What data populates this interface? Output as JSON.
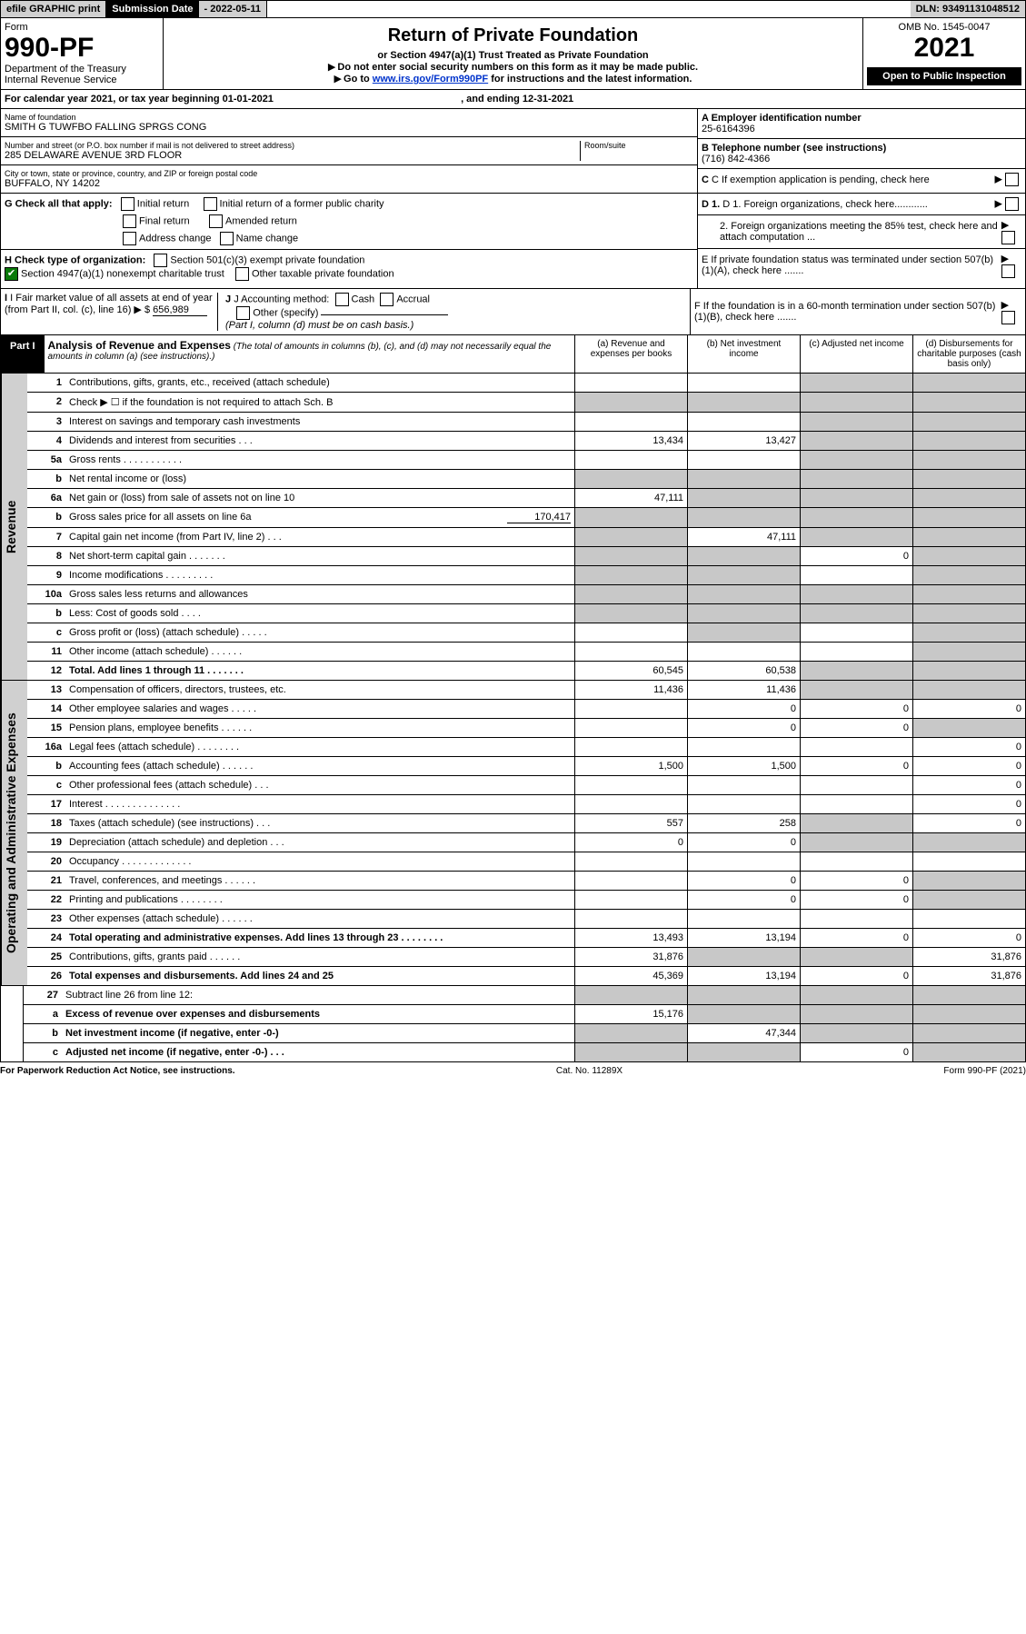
{
  "top": {
    "efile": "efile GRAPHIC print",
    "subm_label": "Submission Date",
    "subm_date": "2022-05-11",
    "dln_label": "DLN:",
    "dln": "93491131048512"
  },
  "header": {
    "form_word": "Form",
    "form_num": "990-PF",
    "dept": "Department of the Treasury",
    "irs": "Internal Revenue Service",
    "title": "Return of Private Foundation",
    "subtitle": "or Section 4947(a)(1) Trust Treated as Private Foundation",
    "note1": "Do not enter social security numbers on this form as it may be made public.",
    "note2_pre": "Go to ",
    "note2_link": "www.irs.gov/Form990PF",
    "note2_post": " for instructions and the latest information.",
    "omb": "OMB No. 1545-0047",
    "year": "2021",
    "open_pub": "Open to Public Inspection"
  },
  "cal_year": {
    "pre": "For calendar year 2021, or tax year beginning ",
    "begin": "01-01-2021",
    "mid": ", and ending ",
    "end": "12-31-2021"
  },
  "entity": {
    "name_label": "Name of foundation",
    "name": "SMITH G TUWFBO FALLING SPRGS CONG",
    "addr_label": "Number and street (or P.O. box number if mail is not delivered to street address)",
    "addr": "285 DELAWARE AVENUE 3RD FLOOR",
    "room_label": "Room/suite",
    "city_label": "City or town, state or province, country, and ZIP or foreign postal code",
    "city": "BUFFALO, NY  14202",
    "A_label": "A Employer identification number",
    "A_val": "25-6164396",
    "B_label": "B Telephone number (see instructions)",
    "B_val": "(716) 842-4366",
    "C_label": "C If exemption application is pending, check here"
  },
  "G": {
    "label": "G Check all that apply:",
    "initial": "Initial return",
    "initial_former": "Initial return of a former public charity",
    "final": "Final return",
    "amended": "Amended return",
    "addr_change": "Address change",
    "name_change": "Name change"
  },
  "H": {
    "label": "H Check type of organization:",
    "c3": "Section 501(c)(3) exempt private foundation",
    "trust": "Section 4947(a)(1) nonexempt charitable trust",
    "other_tax": "Other taxable private foundation"
  },
  "I": {
    "label": "I Fair market value of all assets at end of year (from Part II, col. (c), line 16)",
    "val": "656,989"
  },
  "J": {
    "label": "J Accounting method:",
    "cash": "Cash",
    "accrual": "Accrual",
    "other": "Other (specify)",
    "note": "(Part I, column (d) must be on cash basis.)"
  },
  "right_mid": {
    "D1": "D 1. Foreign organizations, check here............",
    "D2": "2. Foreign organizations meeting the 85% test, check here and attach computation ...",
    "E": "E  If private foundation status was terminated under section 507(b)(1)(A), check here .......",
    "F": "F  If the foundation is in a 60-month termination under section 507(b)(1)(B), check here ......."
  },
  "part1": {
    "tag": "Part I",
    "title": "Analysis of Revenue and Expenses",
    "note": "(The total of amounts in columns (b), (c), and (d) may not necessarily equal the amounts in column (a) (see instructions).)",
    "col_a": "(a)  Revenue and expenses per books",
    "col_b": "(b)  Net investment income",
    "col_c": "(c)  Adjusted net income",
    "col_d": "(d)  Disbursements for charitable purposes (cash basis only)"
  },
  "side": {
    "rev": "Revenue",
    "exp": "Operating and Administrative Expenses"
  },
  "rows": {
    "r1": {
      "n": "1",
      "d": "Contributions, gifts, grants, etc., received (attach schedule)"
    },
    "r2": {
      "n": "2",
      "d": "Check ▶ ☐ if the foundation is not required to attach Sch. B"
    },
    "r3": {
      "n": "3",
      "d": "Interest on savings and temporary cash investments"
    },
    "r4": {
      "n": "4",
      "d": "Dividends and interest from securities  .  .  .",
      "a": "13,434",
      "b": "13,427"
    },
    "r5a": {
      "n": "5a",
      "d": "Gross rents  .  .  .  .  .  .  .  .  .  .  ."
    },
    "r5b": {
      "n": "b",
      "d": "Net rental income or (loss)"
    },
    "r6a": {
      "n": "6a",
      "d": "Net gain or (loss) from sale of assets not on line 10",
      "a": "47,111"
    },
    "r6b": {
      "n": "b",
      "d": "Gross sales price for all assets on line 6a",
      "extra": "170,417"
    },
    "r7": {
      "n": "7",
      "d": "Capital gain net income (from Part IV, line 2)  .  .  .",
      "b": "47,111"
    },
    "r8": {
      "n": "8",
      "d": "Net short-term capital gain  .  .  .  .  .  .  .",
      "c": "0"
    },
    "r9": {
      "n": "9",
      "d": "Income modifications  .  .  .  .  .  .  .  .  ."
    },
    "r10a": {
      "n": "10a",
      "d": "Gross sales less returns and allowances"
    },
    "r10b": {
      "n": "b",
      "d": "Less: Cost of goods sold  .  .  .  ."
    },
    "r10c": {
      "n": "c",
      "d": "Gross profit or (loss) (attach schedule)  .  .  .  .  ."
    },
    "r11": {
      "n": "11",
      "d": "Other income (attach schedule)  .  .  .  .  .  ."
    },
    "r12": {
      "n": "12",
      "d": "Total. Add lines 1 through 11  .  .  .  .  .  .  .",
      "a": "60,545",
      "b": "60,538"
    },
    "r13": {
      "n": "13",
      "d": "Compensation of officers, directors, trustees, etc.",
      "a": "11,436",
      "b": "11,436"
    },
    "r14": {
      "n": "14",
      "d": "Other employee salaries and wages  .  .  .  .  .",
      "b": "0",
      "c": "0",
      "dd": "0"
    },
    "r15": {
      "n": "15",
      "d": "Pension plans, employee benefits  .  .  .  .  .  .",
      "b": "0",
      "c": "0"
    },
    "r16a": {
      "n": "16a",
      "d": "Legal fees (attach schedule)  .  .  .  .  .  .  .  .",
      "dd": "0"
    },
    "r16b": {
      "n": "b",
      "d": "Accounting fees (attach schedule)  .  .  .  .  .  .",
      "a": "1,500",
      "b": "1,500",
      "c": "0",
      "dd": "0"
    },
    "r16c": {
      "n": "c",
      "d": "Other professional fees (attach schedule)  .  .  .",
      "dd": "0"
    },
    "r17": {
      "n": "17",
      "d": "Interest  .  .  .  .  .  .  .  .  .  .  .  .  .  .",
      "dd": "0"
    },
    "r18": {
      "n": "18",
      "d": "Taxes (attach schedule) (see instructions)  .  .  .",
      "a": "557",
      "b": "258",
      "dd": "0"
    },
    "r19": {
      "n": "19",
      "d": "Depreciation (attach schedule) and depletion  .  .  .",
      "a": "0",
      "b": "0"
    },
    "r20": {
      "n": "20",
      "d": "Occupancy  .  .  .  .  .  .  .  .  .  .  .  .  ."
    },
    "r21": {
      "n": "21",
      "d": "Travel, conferences, and meetings  .  .  .  .  .  .",
      "b": "0",
      "c": "0"
    },
    "r22": {
      "n": "22",
      "d": "Printing and publications  .  .  .  .  .  .  .  .",
      "b": "0",
      "c": "0"
    },
    "r23": {
      "n": "23",
      "d": "Other expenses (attach schedule)  .  .  .  .  .  ."
    },
    "r24": {
      "n": "24",
      "d": "Total operating and administrative expenses. Add lines 13 through 23  .  .  .  .  .  .  .  .",
      "a": "13,493",
      "b": "13,194",
      "c": "0",
      "dd": "0"
    },
    "r25": {
      "n": "25",
      "d": "Contributions, gifts, grants paid  .  .  .  .  .  .",
      "a": "31,876",
      "dd": "31,876"
    },
    "r26": {
      "n": "26",
      "d": "Total expenses and disbursements. Add lines 24 and 25",
      "a": "45,369",
      "b": "13,194",
      "c": "0",
      "dd": "31,876"
    },
    "r27": {
      "n": "27",
      "d": "Subtract line 26 from line 12:"
    },
    "r27a": {
      "n": "a",
      "d": "Excess of revenue over expenses and disbursements",
      "a": "15,176"
    },
    "r27b": {
      "n": "b",
      "d": "Net investment income (if negative, enter -0-)",
      "b": "47,344"
    },
    "r27c": {
      "n": "c",
      "d": "Adjusted net income (if negative, enter -0-)  .  .  .",
      "c": "0"
    }
  },
  "footer": {
    "left": "For Paperwork Reduction Act Notice, see instructions.",
    "center": "Cat. No. 11289X",
    "right": "Form 990-PF (2021)"
  }
}
